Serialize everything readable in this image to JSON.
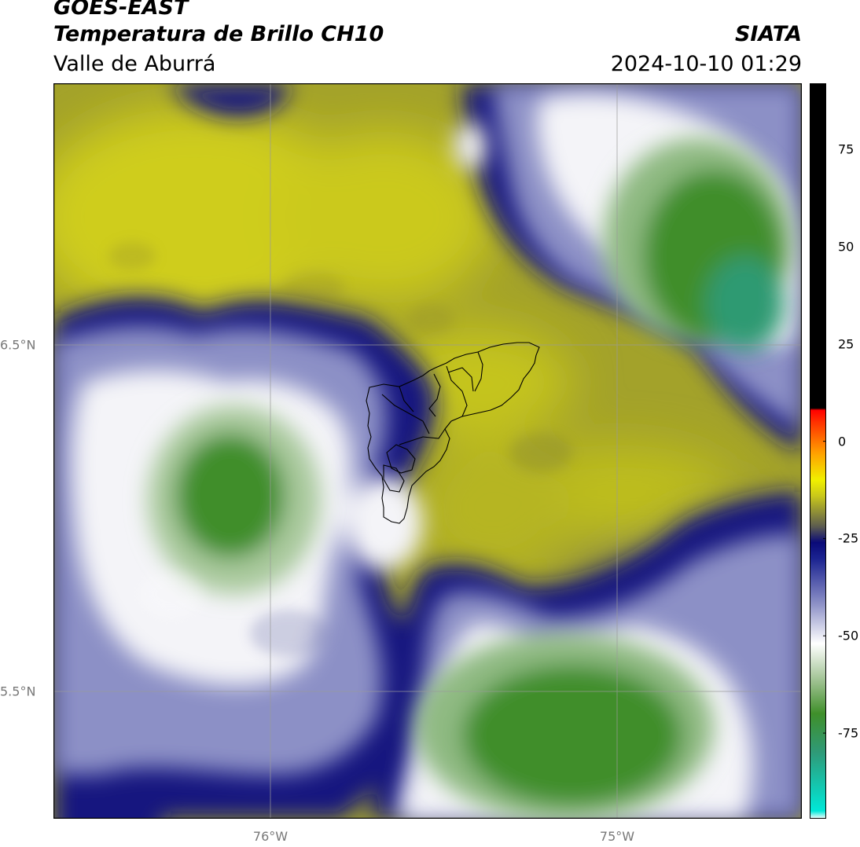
{
  "header": {
    "satellite": "GOES-EAST",
    "product": "Temperatura de Brillo CH10",
    "region": "Valle de Aburrá",
    "agency": "SIATA",
    "datetime": "2024-10-10 01:29"
  },
  "axes": {
    "lon_ticks": [
      "76°W",
      "75°W"
    ],
    "lat_ticks": [
      "6.5°N",
      "5.5°N"
    ]
  },
  "colorbar": {
    "labels": [
      "75",
      "50",
      "25",
      "0",
      "-25",
      "-50",
      "-75"
    ],
    "min": -97,
    "max": 92,
    "stops": [
      {
        "v": -97,
        "c": "#ffffff"
      },
      {
        "v": -95,
        "c": "#00e8d8"
      },
      {
        "v": -80,
        "c": "#2f9a78"
      },
      {
        "v": -70,
        "c": "#3f8f2a"
      },
      {
        "v": -62,
        "c": "#9abf8c"
      },
      {
        "v": -52,
        "c": "#ffffff"
      },
      {
        "v": -42,
        "c": "#8f93c8"
      },
      {
        "v": -30,
        "c": "#1a2290"
      },
      {
        "v": -26,
        "c": "#0a0a78"
      },
      {
        "v": -22,
        "c": "#5a5a50"
      },
      {
        "v": -14,
        "c": "#c9c81a"
      },
      {
        "v": -10,
        "c": "#f0f000"
      },
      {
        "v": -3,
        "c": "#ffa000"
      },
      {
        "v": 5,
        "c": "#ff3000"
      },
      {
        "v": 8,
        "c": "#ff0000"
      },
      {
        "v": 8.5,
        "c": "#000000"
      },
      {
        "v": 92,
        "c": "#000000"
      }
    ]
  }
}
